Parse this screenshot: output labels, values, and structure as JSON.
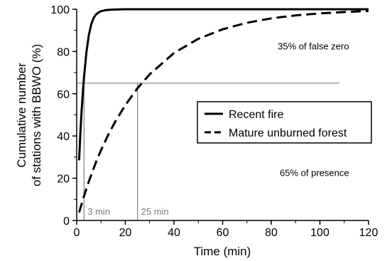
{
  "chart_data": {
    "type": "line",
    "xlabel": "Time (min)",
    "ylabel_lines": [
      "Cumulative number",
      "of stations with BBWO (%)"
    ],
    "xlim": [
      0,
      120
    ],
    "ylim": [
      0,
      100
    ],
    "x_ticks": [
      0,
      20,
      40,
      60,
      80,
      100,
      120
    ],
    "y_ticks": [
      0,
      20,
      40,
      60,
      80,
      100
    ],
    "series": [
      {
        "name": "Recent fire",
        "style": "solid",
        "color": "#000000",
        "x": [
          1,
          1.5,
          2,
          2.5,
          3,
          4,
          5,
          6,
          7,
          8,
          9,
          10,
          12,
          14,
          17,
          20,
          30,
          40,
          60,
          80,
          100,
          120
        ],
        "y": [
          28.5,
          40.8,
          51.3,
          60.2,
          67.8,
          79.6,
          87.8,
          93.0,
          96.0,
          97.6,
          98.5,
          99.1,
          99.6,
          99.8,
          99.9,
          100,
          100,
          100,
          100,
          100,
          100,
          100
        ]
      },
      {
        "name": "Mature unburned forest",
        "style": "dashed",
        "color": "#000000",
        "x": [
          1,
          3,
          5,
          8,
          10,
          13,
          16,
          20,
          25,
          30,
          40,
          50,
          60,
          70,
          80,
          90,
          100,
          110,
          120
        ],
        "y": [
          3.8,
          11.5,
          18.5,
          27.8,
          33.3,
          40.6,
          47.1,
          54.6,
          62.6,
          69.2,
          79.3,
          86.0,
          90.5,
          93.6,
          95.7,
          97.1,
          98.0,
          98.7,
          99.2
        ]
      }
    ],
    "reference_lines": {
      "horizontal_y": 65,
      "horizontal_x_end": 108,
      "vertical": [
        {
          "x": 3,
          "label": "3 min"
        },
        {
          "x": 25,
          "label": "25 min"
        }
      ],
      "color": "#808080"
    },
    "annotations": [
      {
        "text": "35% of false zero",
        "x": 112,
        "y": 81
      },
      {
        "text": "65% of presence",
        "x": 112,
        "y": 21
      }
    ],
    "legend": {
      "placement": "center-right",
      "entries": [
        "Recent fire",
        "Mature unburned forest"
      ]
    },
    "grid": false
  }
}
